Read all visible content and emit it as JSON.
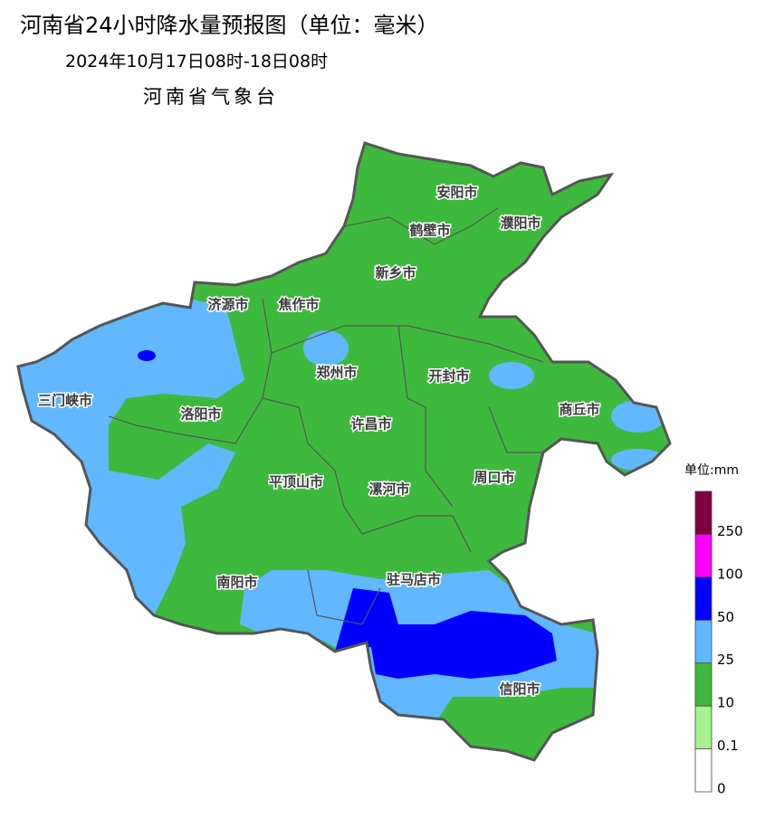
{
  "header": {
    "title": "河南省24小时降水量预报图（单位：毫米）",
    "period": "2024年10月17日08时-18日08时",
    "issuer": "河南省气象台"
  },
  "cities": [
    {
      "label": "安阳市"
    },
    {
      "label": "鹤壁市"
    },
    {
      "label": "濮阳市"
    },
    {
      "label": "新乡市"
    },
    {
      "label": "济源市"
    },
    {
      "label": "焦作市"
    },
    {
      "label": "郑州市"
    },
    {
      "label": "开封市"
    },
    {
      "label": "三门峡市"
    },
    {
      "label": "洛阳市"
    },
    {
      "label": "商丘市"
    },
    {
      "label": "许昌市"
    },
    {
      "label": "平顶山市"
    },
    {
      "label": "漯河市"
    },
    {
      "label": "周口市"
    },
    {
      "label": "驻马店市"
    },
    {
      "label": "南阳市"
    },
    {
      "label": "信阳市"
    }
  ],
  "legend": {
    "title": "单位:mm",
    "levels": [
      0,
      0.1,
      10,
      25,
      50,
      100,
      250
    ],
    "colors": [
      "#ffffff",
      "#a6f28f",
      "#3dba3d",
      "#61b8ff",
      "#0000fe",
      "#fa00fa",
      "#800040"
    ]
  }
}
